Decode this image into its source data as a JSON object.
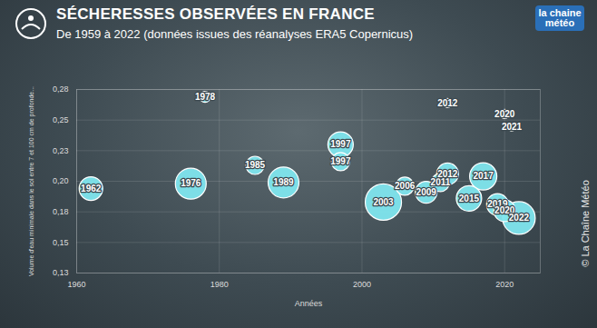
{
  "chart_data": {
    "type": "bubble",
    "title": "SÉCHERESSES OBSERVÉES EN FRANCE",
    "subtitle": "De 1959 à 2022 (données issues des réanalyses ERA5 Copernicus)",
    "logo": "la chaine météo",
    "caption": "© La Chaîne Météo",
    "x_label": "Années",
    "y_label": "Volume d'eau minimale dans le sol entre 7 et 100 cm de profonde...",
    "x": [
      1962,
      1976,
      1978,
      1985,
      1989,
      1997,
      1997,
      2003,
      2006,
      2009,
      2011,
      2012,
      2012,
      2015,
      2017,
      2019,
      2020,
      2020,
      2021,
      2022
    ],
    "values": [
      0.194,
      0.198,
      0.269,
      0.213,
      0.199,
      0.23,
      0.216,
      0.183,
      0.196,
      0.191,
      0.199,
      0.206,
      0.264,
      0.186,
      0.204,
      0.181,
      0.176,
      0.255,
      0.244,
      0.17
    ],
    "sizes": [
      13,
      17,
      6,
      10,
      17,
      14,
      10,
      20,
      10,
      12,
      10,
      12,
      5,
      14,
      15,
      12,
      12,
      5,
      4,
      18
    ],
    "color": "#7fe6ee",
    "data_labels": true,
    "grid": true,
    "xlim": [
      1960,
      2025
    ],
    "xticks": [
      1960,
      1980,
      2000,
      2020
    ],
    "ylim": [
      0.125,
      0.275
    ],
    "yticks": [
      {
        "value": 0.125,
        "label": "0,13"
      },
      {
        "value": 0.15,
        "label": "0,15"
      },
      {
        "value": 0.175,
        "label": "0,18"
      },
      {
        "value": 0.2,
        "label": "0,20"
      },
      {
        "value": 0.225,
        "label": "0,23"
      },
      {
        "value": 0.25,
        "label": "0,25"
      },
      {
        "value": 0.275,
        "label": "0,28"
      }
    ]
  }
}
